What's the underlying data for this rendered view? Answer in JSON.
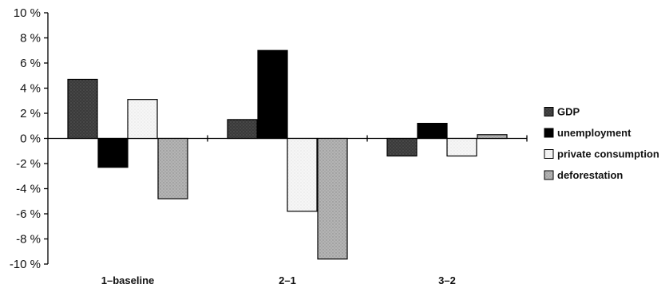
{
  "chart_data": {
    "type": "bar",
    "title": "",
    "xlabel": "",
    "ylabel": "",
    "categories": [
      "1–baseline",
      "2–1",
      "3–2"
    ],
    "series": [
      {
        "name": "GDP",
        "values": [
          4.7,
          1.5,
          -1.4
        ],
        "color": "#444444",
        "pattern": "dark-stipple"
      },
      {
        "name": "unemployment",
        "values": [
          -2.3,
          7.0,
          1.2
        ],
        "color": "#000000",
        "pattern": "solid"
      },
      {
        "name": "private consumption",
        "values": [
          3.1,
          -5.8,
          -1.4
        ],
        "color": "#f2f2f2",
        "pattern": "light-dots"
      },
      {
        "name": "deforestation",
        "values": [
          -4.8,
          -9.6,
          0.3
        ],
        "color": "#b0b0b0",
        "pattern": "grey-stipple"
      }
    ],
    "ylim": [
      -10,
      10
    ],
    "yticks": [
      {
        "value": 10,
        "label": "10 %"
      },
      {
        "value": 8,
        "label": "8 %"
      },
      {
        "value": 6,
        "label": "6 %"
      },
      {
        "value": 4,
        "label": "4 %"
      },
      {
        "value": 2,
        "label": "2 %"
      },
      {
        "value": 0,
        "label": "0 %"
      },
      {
        "value": -2,
        "label": "-2 %"
      },
      {
        "value": -4,
        "label": "-4 %"
      },
      {
        "value": -6,
        "label": "-6 %"
      },
      {
        "value": -8,
        "label": "-8 %"
      },
      {
        "value": -10,
        "label": "-10 %"
      }
    ],
    "grid": false,
    "legend_position": "right"
  }
}
